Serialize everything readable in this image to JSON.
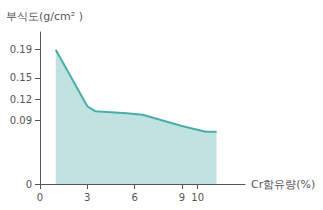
{
  "chart_data": {
    "type": "area",
    "xlabel": "Cr함유량(%)",
    "ylabel": "부식도(g/cm² )",
    "x": [
      1,
      3,
      3.5,
      5.5,
      6.5,
      9,
      10.5,
      11.2
    ],
    "values": [
      0.19,
      0.11,
      0.103,
      0.1,
      0.098,
      0.082,
      0.074,
      0.074
    ],
    "color": "#4aadaa",
    "xlim": [
      0,
      13
    ],
    "xticks": [
      0,
      3,
      6,
      9,
      10
    ],
    "ylim": [
      0,
      0.215
    ],
    "yticks": [
      0,
      0.09,
      0.12,
      0.15,
      0.19
    ],
    "grid": false
  }
}
